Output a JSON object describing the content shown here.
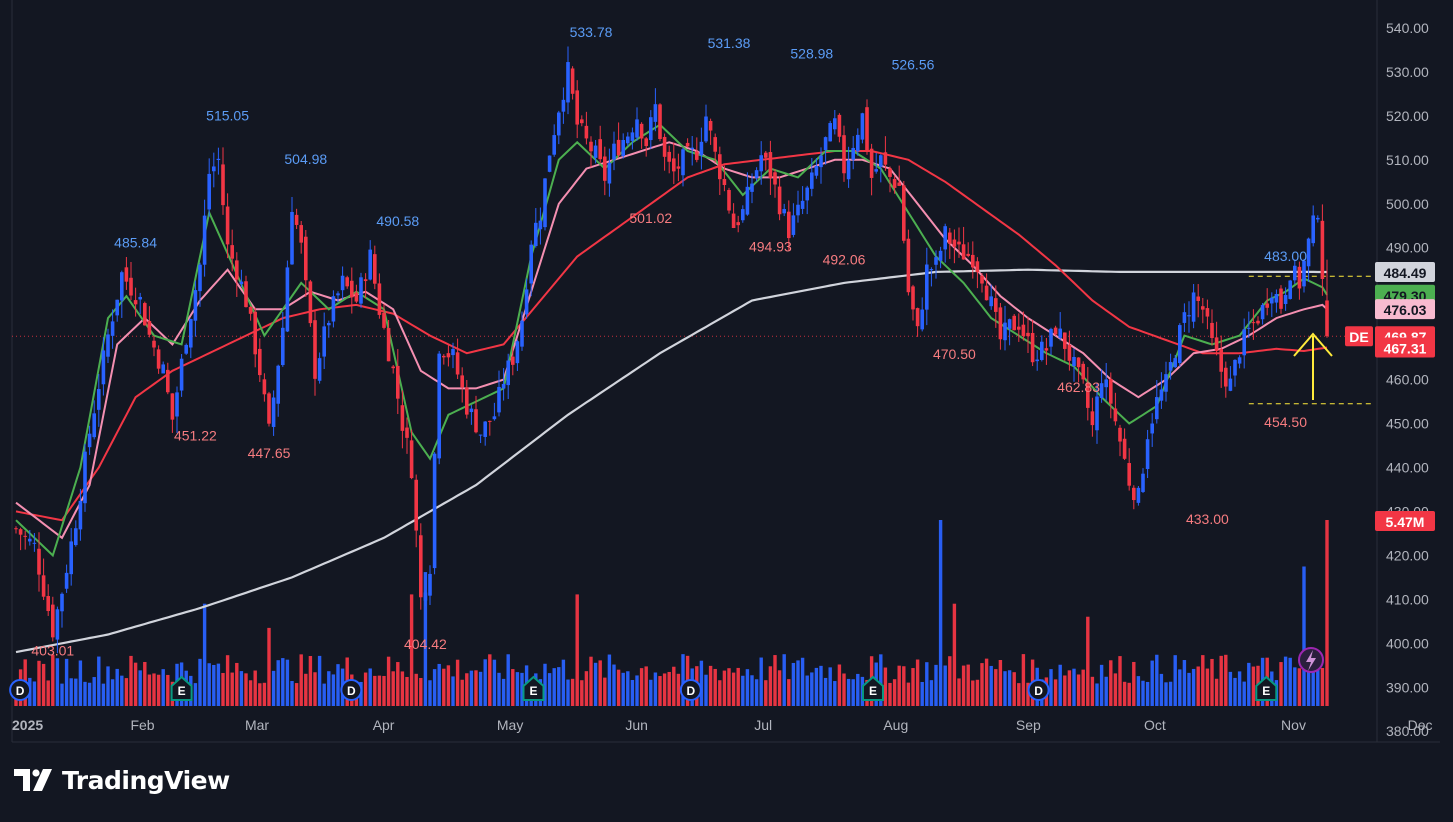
{
  "brand": {
    "name": "TradingView"
  },
  "chart_data": {
    "type": "candlestick",
    "symbol": "DE",
    "timeframe": "1D",
    "year_label": "2025",
    "x_labels": [
      "Feb",
      "Mar",
      "Apr",
      "May",
      "Jun",
      "Jul",
      "Aug",
      "Sep",
      "Oct",
      "Nov",
      "Dec"
    ],
    "ylim": [
      378,
      545
    ],
    "y_ticks": [
      380,
      390,
      400,
      410,
      420,
      430,
      440,
      450,
      460,
      470,
      480,
      490,
      500,
      510,
      520,
      530,
      540
    ],
    "grid": false,
    "colors": {
      "background": "#131722",
      "up": "#2962ff",
      "down": "#f23645",
      "text": "#b2b5be",
      "ma_fast": "#4caf50",
      "ma_mid": "#f48fb1",
      "ma_slow": "#f23645",
      "ma_long": "#d1d4dc",
      "arrow": "#ffeb3b",
      "high_label": "#5b9cf6",
      "low_label": "#f77c80"
    },
    "price_anchors": [
      [
        0,
        426
      ],
      [
        4,
        422
      ],
      [
        8,
        403
      ],
      [
        10,
        412
      ],
      [
        13,
        428
      ],
      [
        16,
        448
      ],
      [
        20,
        470
      ],
      [
        23,
        484
      ],
      [
        27,
        478
      ],
      [
        29,
        470
      ],
      [
        32,
        462
      ],
      [
        34,
        451
      ],
      [
        37,
        470
      ],
      [
        40,
        486
      ],
      [
        42,
        507
      ],
      [
        44,
        510
      ],
      [
        46,
        490
      ],
      [
        48,
        485
      ],
      [
        50,
        478
      ],
      [
        53,
        462
      ],
      [
        55,
        448
      ],
      [
        58,
        472
      ],
      [
        60,
        500
      ],
      [
        62,
        490
      ],
      [
        65,
        462
      ],
      [
        68,
        474
      ],
      [
        71,
        482
      ],
      [
        74,
        478
      ],
      [
        77,
        488
      ],
      [
        79,
        476
      ],
      [
        82,
        462
      ],
      [
        84,
        450
      ],
      [
        86,
        440
      ],
      [
        88,
        410
      ],
      [
        90,
        418
      ],
      [
        92,
        468
      ],
      [
        95,
        465
      ],
      [
        98,
        454
      ],
      [
        101,
        448
      ],
      [
        104,
        452
      ],
      [
        106,
        460
      ],
      [
        108,
        465
      ],
      [
        110,
        474
      ],
      [
        112,
        492
      ],
      [
        114,
        498
      ],
      [
        116,
        512
      ],
      [
        118,
        522
      ],
      [
        120,
        530
      ],
      [
        122,
        518
      ],
      [
        124,
        514
      ],
      [
        126,
        511
      ],
      [
        128,
        506
      ],
      [
        130,
        512
      ],
      [
        133,
        516
      ],
      [
        135,
        520
      ],
      [
        137,
        514
      ],
      [
        139,
        522
      ],
      [
        141,
        510
      ],
      [
        143,
        507
      ],
      [
        145,
        510
      ],
      [
        148,
        512
      ],
      [
        150,
        520
      ],
      [
        152,
        511
      ],
      [
        154,
        504
      ],
      [
        156,
        495
      ],
      [
        158,
        498
      ],
      [
        160,
        505
      ],
      [
        162,
        511
      ],
      [
        164,
        507
      ],
      [
        166,
        500
      ],
      [
        168,
        494
      ],
      [
        170,
        498
      ],
      [
        173,
        505
      ],
      [
        176,
        514
      ],
      [
        178,
        518
      ],
      [
        180,
        508
      ],
      [
        182,
        514
      ],
      [
        184,
        520
      ],
      [
        186,
        506
      ],
      [
        188,
        510
      ],
      [
        190,
        506
      ],
      [
        192,
        504
      ],
      [
        194,
        480
      ],
      [
        196,
        470.5
      ],
      [
        198,
        485
      ],
      [
        200,
        486
      ],
      [
        202,
        493
      ],
      [
        205,
        489
      ],
      [
        208,
        488
      ],
      [
        210,
        484
      ],
      [
        212,
        477
      ],
      [
        214,
        469
      ],
      [
        216,
        472
      ],
      [
        218,
        473
      ],
      [
        221,
        466
      ],
      [
        224,
        467
      ],
      [
        226,
        472
      ],
      [
        228,
        468
      ],
      [
        230,
        462.83
      ],
      [
        232,
        458
      ],
      [
        234,
        449
      ],
      [
        236,
        461
      ],
      [
        238,
        455
      ],
      [
        240,
        446
      ],
      [
        242,
        437
      ],
      [
        244,
        433
      ],
      [
        246,
        448
      ],
      [
        248,
        455
      ],
      [
        250,
        459
      ],
      [
        252,
        467
      ],
      [
        254,
        474
      ],
      [
        256,
        479
      ],
      [
        258,
        476
      ],
      [
        260,
        468
      ],
      [
        262,
        462
      ],
      [
        264,
        459
      ],
      [
        266,
        467
      ],
      [
        268,
        471
      ],
      [
        271,
        476
      ],
      [
        273,
        481
      ],
      [
        275,
        477
      ],
      [
        277,
        485
      ],
      [
        279,
        482
      ],
      [
        281,
        491
      ],
      [
        283,
        499
      ],
      [
        285,
        469.87
      ]
    ],
    "n_days": 286,
    "x_first_day": 0,
    "months": [
      {
        "label": "Feb",
        "day": 21
      },
      {
        "label": "Mar",
        "day": 40
      },
      {
        "label": "Apr",
        "day": 61
      },
      {
        "label": "May",
        "day": 82
      },
      {
        "label": "Jun",
        "day": 103
      },
      {
        "label": "Jul",
        "day": 124
      },
      {
        "label": "Aug",
        "day": 146
      },
      {
        "label": "Sep",
        "day": 168
      },
      {
        "label": "Oct",
        "day": 189
      },
      {
        "label": "Nov",
        "day": 212
      },
      {
        "label": "Dec",
        "day": 233
      }
    ],
    "ma_fast_anchors": [
      [
        0,
        428
      ],
      [
        8,
        420
      ],
      [
        14,
        440
      ],
      [
        20,
        474
      ],
      [
        24,
        479
      ],
      [
        30,
        470
      ],
      [
        36,
        468
      ],
      [
        42,
        498
      ],
      [
        48,
        484
      ],
      [
        54,
        470
      ],
      [
        58,
        476
      ],
      [
        62,
        482
      ],
      [
        68,
        476
      ],
      [
        74,
        480
      ],
      [
        80,
        476
      ],
      [
        86,
        448
      ],
      [
        90,
        442
      ],
      [
        94,
        452
      ],
      [
        100,
        455
      ],
      [
        106,
        458
      ],
      [
        112,
        488
      ],
      [
        118,
        510
      ],
      [
        122,
        514
      ],
      [
        128,
        508
      ],
      [
        134,
        514
      ],
      [
        140,
        518
      ],
      [
        146,
        512
      ],
      [
        152,
        510
      ],
      [
        158,
        502
      ],
      [
        164,
        508
      ],
      [
        170,
        506
      ],
      [
        176,
        512
      ],
      [
        182,
        512
      ],
      [
        188,
        508
      ],
      [
        194,
        498
      ],
      [
        200,
        488
      ],
      [
        206,
        482
      ],
      [
        212,
        474
      ],
      [
        218,
        470
      ],
      [
        224,
        466
      ],
      [
        230,
        463
      ],
      [
        236,
        456
      ],
      [
        242,
        450
      ],
      [
        248,
        454
      ],
      [
        254,
        470
      ],
      [
        260,
        468
      ],
      [
        266,
        470
      ],
      [
        272,
        478
      ],
      [
        276,
        480
      ],
      [
        280,
        483
      ],
      [
        284,
        481
      ],
      [
        285,
        479.3
      ]
    ],
    "ma_mid_anchors": [
      [
        0,
        432
      ],
      [
        10,
        424
      ],
      [
        16,
        436
      ],
      [
        22,
        468
      ],
      [
        28,
        474
      ],
      [
        34,
        468
      ],
      [
        40,
        478
      ],
      [
        46,
        485
      ],
      [
        52,
        476
      ],
      [
        58,
        476
      ],
      [
        64,
        480
      ],
      [
        70,
        478
      ],
      [
        76,
        480
      ],
      [
        82,
        476
      ],
      [
        88,
        462
      ],
      [
        94,
        458
      ],
      [
        100,
        458
      ],
      [
        106,
        460
      ],
      [
        112,
        480
      ],
      [
        118,
        500
      ],
      [
        124,
        508
      ],
      [
        130,
        510
      ],
      [
        136,
        512
      ],
      [
        142,
        514
      ],
      [
        148,
        512
      ],
      [
        154,
        508
      ],
      [
        160,
        506
      ],
      [
        166,
        506
      ],
      [
        172,
        508
      ],
      [
        178,
        510
      ],
      [
        184,
        510
      ],
      [
        190,
        508
      ],
      [
        196,
        500
      ],
      [
        202,
        492
      ],
      [
        208,
        486
      ],
      [
        214,
        479
      ],
      [
        220,
        474
      ],
      [
        226,
        470
      ],
      [
        232,
        466
      ],
      [
        238,
        460
      ],
      [
        244,
        456
      ],
      [
        250,
        460
      ],
      [
        256,
        466
      ],
      [
        262,
        467
      ],
      [
        268,
        470
      ],
      [
        274,
        474
      ],
      [
        280,
        476
      ],
      [
        284,
        477
      ],
      [
        285,
        476.03
      ]
    ],
    "ma_slow_anchors": [
      [
        0,
        430
      ],
      [
        10,
        428
      ],
      [
        18,
        440
      ],
      [
        26,
        456
      ],
      [
        34,
        462
      ],
      [
        42,
        466
      ],
      [
        50,
        470
      ],
      [
        58,
        474
      ],
      [
        66,
        476
      ],
      [
        74,
        477
      ],
      [
        82,
        475
      ],
      [
        90,
        470
      ],
      [
        98,
        466
      ],
      [
        106,
        468
      ],
      [
        114,
        478
      ],
      [
        122,
        488
      ],
      [
        130,
        494
      ],
      [
        138,
        500
      ],
      [
        146,
        506
      ],
      [
        154,
        509
      ],
      [
        162,
        510
      ],
      [
        170,
        511
      ],
      [
        178,
        512
      ],
      [
        186,
        512
      ],
      [
        194,
        510
      ],
      [
        202,
        505
      ],
      [
        210,
        499
      ],
      [
        218,
        493
      ],
      [
        226,
        486
      ],
      [
        234,
        478
      ],
      [
        242,
        472
      ],
      [
        250,
        469
      ],
      [
        258,
        466
      ],
      [
        266,
        466
      ],
      [
        274,
        467
      ],
      [
        280,
        466.5
      ],
      [
        285,
        467.31
      ]
    ],
    "ma_long_anchors": [
      [
        0,
        398
      ],
      [
        20,
        402
      ],
      [
        40,
        408
      ],
      [
        60,
        415
      ],
      [
        80,
        424
      ],
      [
        100,
        436
      ],
      [
        120,
        452
      ],
      [
        140,
        466
      ],
      [
        160,
        478
      ],
      [
        180,
        482
      ],
      [
        200,
        484.5
      ],
      [
        220,
        485
      ],
      [
        240,
        484.5
      ],
      [
        260,
        484.5
      ],
      [
        285,
        484.49
      ]
    ],
    "high_labels": [
      {
        "text": "485.84",
        "day": 26,
        "price": 490
      },
      {
        "text": "515.05",
        "day": 46,
        "price": 519
      },
      {
        "text": "504.98",
        "day": 63,
        "price": 509
      },
      {
        "text": "490.58",
        "day": 83,
        "price": 495
      },
      {
        "text": "533.78",
        "day": 125,
        "price": 538
      },
      {
        "text": "531.38",
        "day": 155,
        "price": 535.5
      },
      {
        "text": "528.98",
        "day": 173,
        "price": 533
      },
      {
        "text": "526.56",
        "day": 195,
        "price": 530.5
      },
      {
        "text": "483.00",
        "day": 276,
        "price": 487
      }
    ],
    "low_labels": [
      {
        "text": "403.01",
        "day": 8,
        "price": 399
      },
      {
        "text": "451.22",
        "day": 39,
        "price": 448
      },
      {
        "text": "447.65",
        "day": 55,
        "price": 444
      },
      {
        "text": "404.42",
        "day": 89,
        "price": 400.5
      },
      {
        "text": "501.02",
        "day": 138,
        "price": 497.5
      },
      {
        "text": "494.93",
        "day": 164,
        "price": 491
      },
      {
        "text": "492.06",
        "day": 180,
        "price": 488
      },
      {
        "text": "470.50",
        "day": 204,
        "price": 466.5
      },
      {
        "text": "462.83",
        "day": 231,
        "price": 459
      },
      {
        "text": "433.00",
        "day": 259,
        "price": 429
      },
      {
        "text": "454.50",
        "day": 276,
        "price": 451
      }
    ],
    "price_tags": [
      {
        "text": "484.49",
        "price": 484.49,
        "bg": "#d1d4dc",
        "fg": "#131722"
      },
      {
        "text": "479.30",
        "price": 479.3,
        "bg": "#4caf50",
        "fg": "#131722"
      },
      {
        "text": "476.03",
        "price": 476.03,
        "bg": "#f8bbd0",
        "fg": "#131722"
      },
      {
        "text": "469.87",
        "price": 469.87,
        "bg": "#f23645",
        "fg": "#ffffff"
      },
      {
        "text": "467.31",
        "price": 467.31,
        "bg": "#f23645",
        "fg": "#ffffff"
      }
    ],
    "symbol_tag": "DE",
    "volume_tag": "5.47M",
    "dashed_levels": [
      483.5,
      454.5
    ],
    "event_markers": [
      {
        "letter": "D",
        "day": 1,
        "color": "#2962ff"
      },
      {
        "letter": "E",
        "day": 40,
        "color": "#089981"
      },
      {
        "letter": "D",
        "day": 81,
        "color": "#2962ff"
      },
      {
        "letter": "E",
        "day": 125,
        "color": "#089981"
      },
      {
        "letter": "D",
        "day": 163,
        "color": "#2962ff"
      },
      {
        "letter": "E",
        "day": 207,
        "color": "#089981"
      },
      {
        "letter": "D",
        "day": 247,
        "color": "#2962ff"
      },
      {
        "letter": "E",
        "day": 302,
        "color": "#089981"
      }
    ],
    "volume_spikes": [
      [
        41,
        0.55
      ],
      [
        55,
        0.42
      ],
      [
        86,
        0.6
      ],
      [
        89,
        0.72
      ],
      [
        122,
        0.6
      ],
      [
        201,
        1.0
      ],
      [
        204,
        0.55
      ],
      [
        233,
        0.48
      ],
      [
        280,
        0.75
      ],
      [
        285,
        1.0
      ]
    ]
  }
}
